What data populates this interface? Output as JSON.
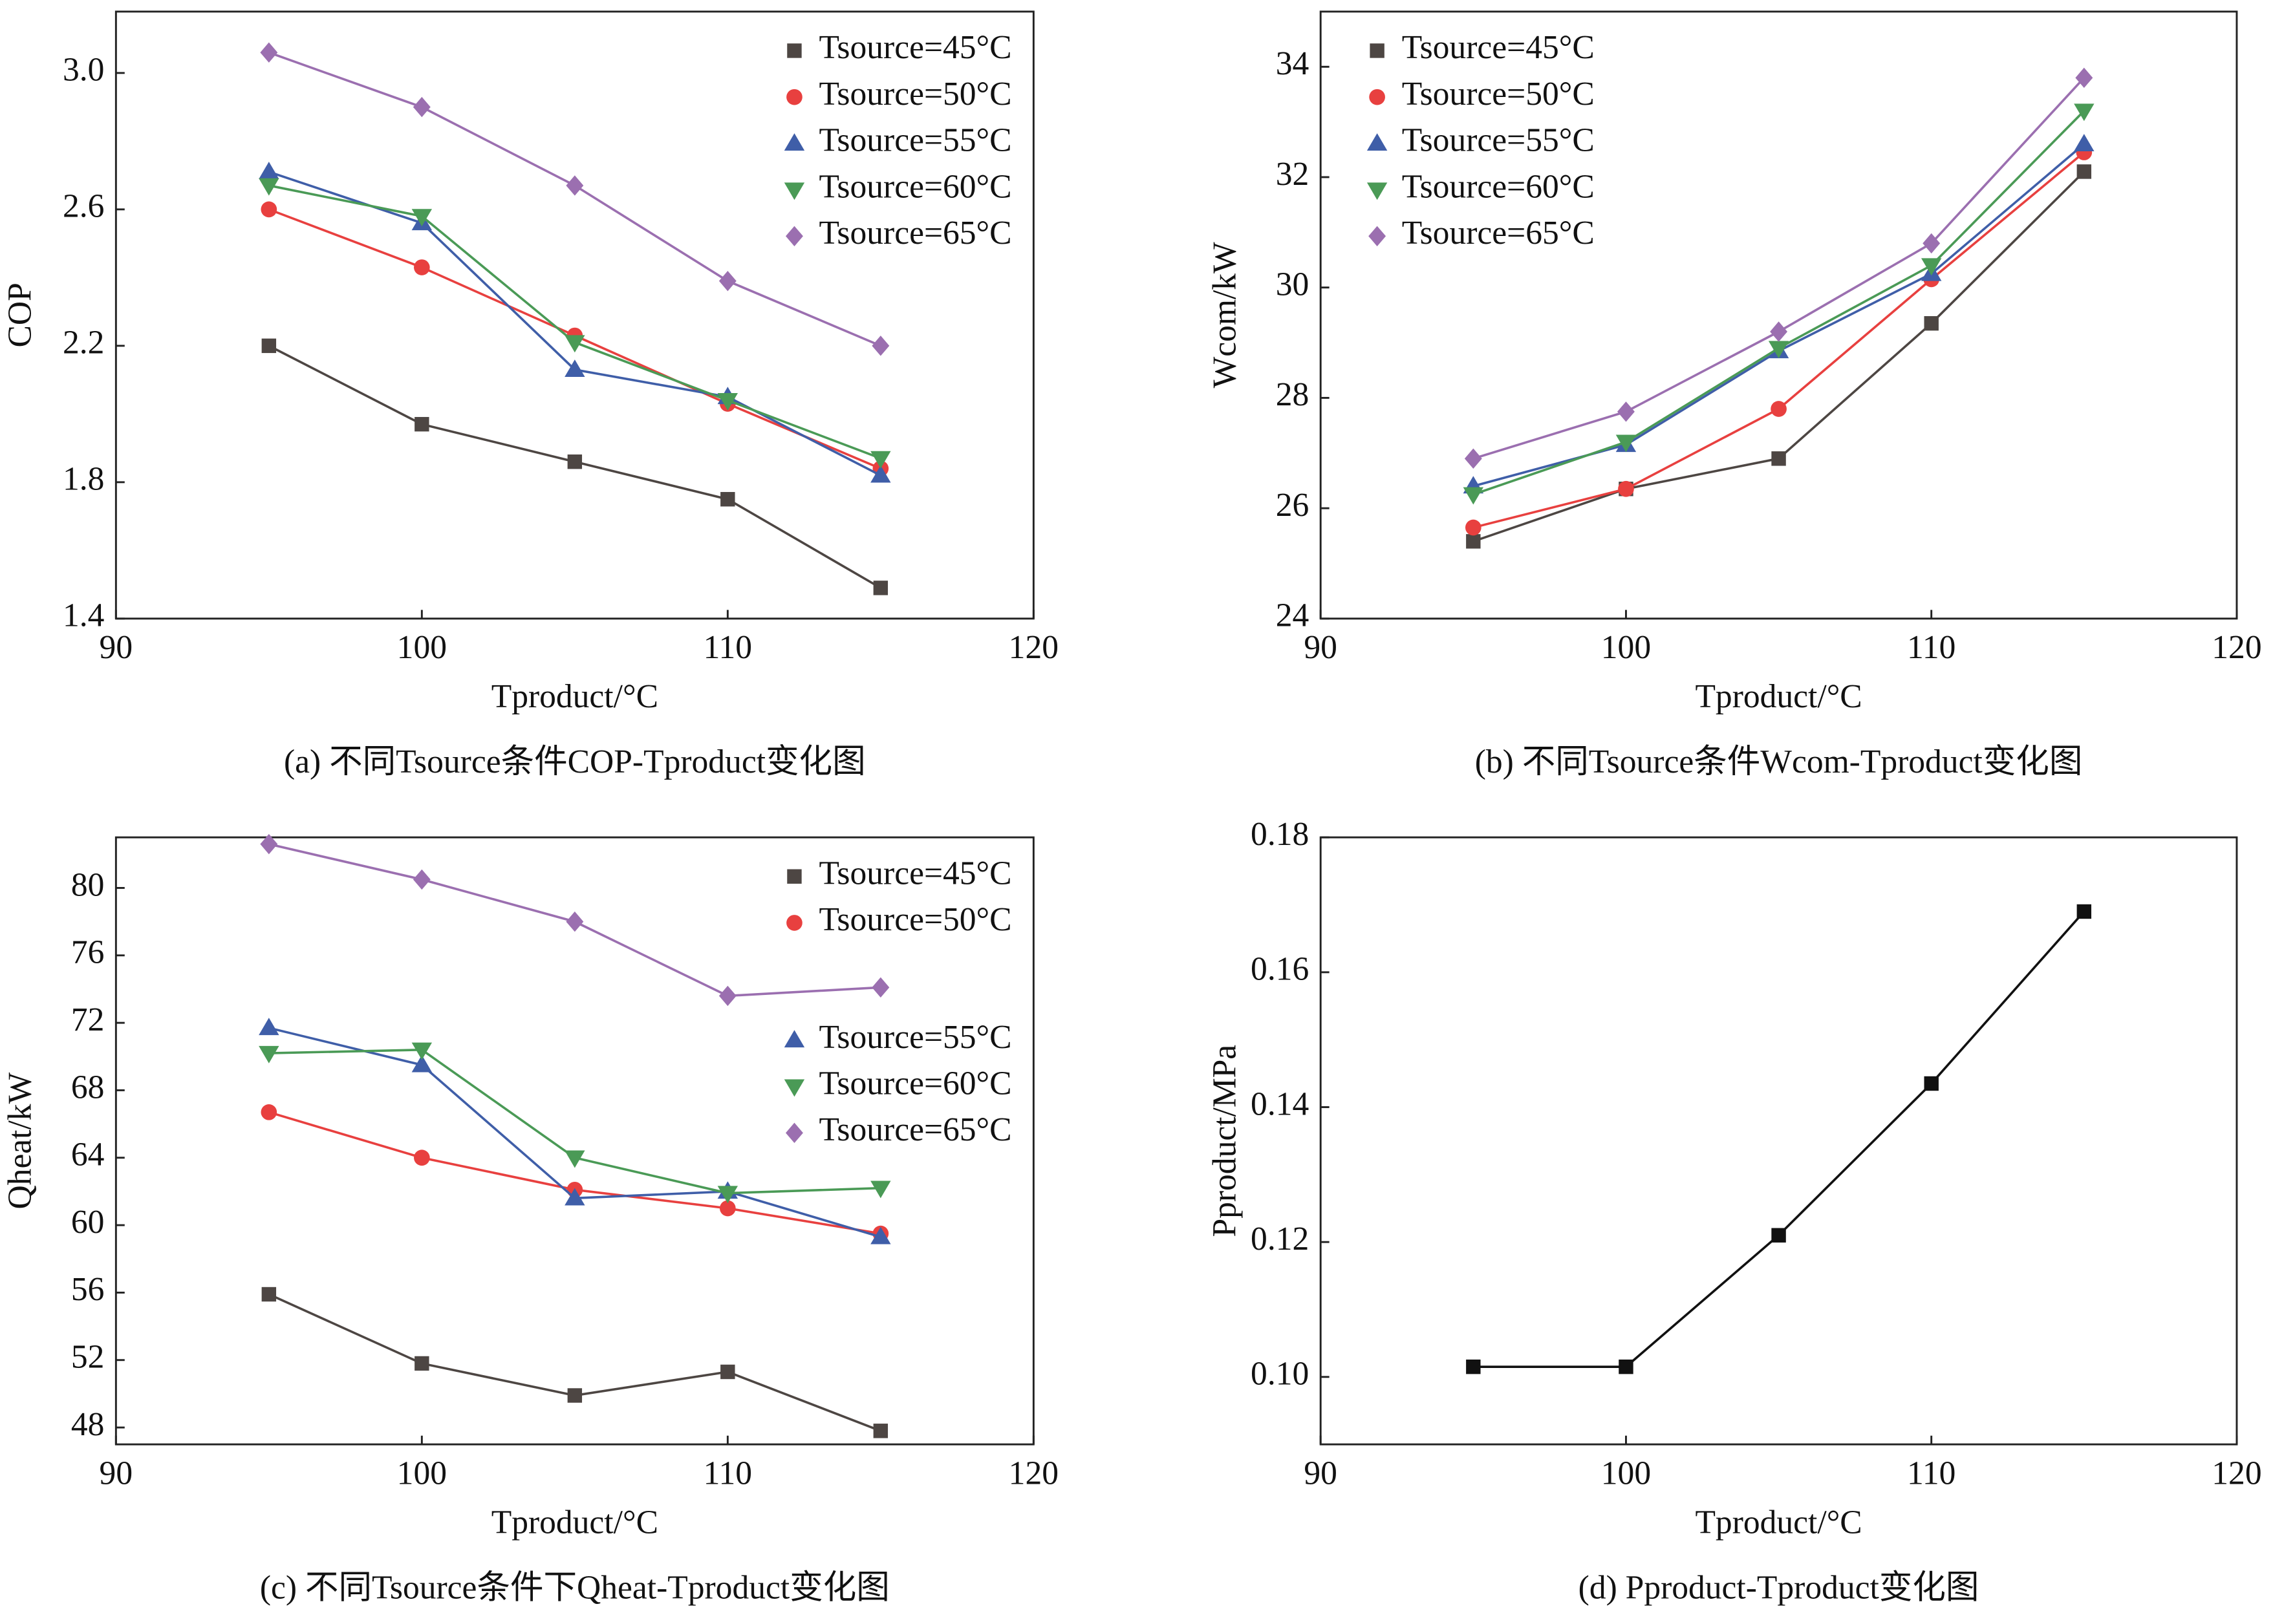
{
  "chart_data": [
    {
      "type": "line",
      "caption": "(a) 不同Tsource条件COP-Tproduct变化图",
      "xlabel": "Tproduct/°C",
      "ylabel": "COP",
      "x": [
        95,
        100,
        105,
        110,
        115
      ],
      "xlim": [
        90,
        120
      ],
      "xticks": [
        90,
        100,
        110,
        120
      ],
      "ylim": [
        1.4,
        3.18
      ],
      "yticks": [
        1.4,
        1.8,
        2.2,
        2.6,
        {
          "value": 3,
          "label": "3.0"
        }
      ],
      "series": [
        {
          "name": "Tsource=45°C",
          "color": "#4d4643",
          "marker": "square",
          "values": [
            2.2,
            1.97,
            1.86,
            1.75,
            1.49
          ]
        },
        {
          "name": "Tsource=50°C",
          "color": "#e8403f",
          "marker": "circle",
          "values": [
            2.6,
            2.43,
            2.23,
            2.03,
            1.84
          ]
        },
        {
          "name": "Tsource=55°C",
          "color": "#3f5ea8",
          "marker": "triangle-up",
          "values": [
            2.71,
            2.56,
            2.13,
            2.05,
            1.82
          ]
        },
        {
          "name": "Tsource=60°C",
          "color": "#4a9a56",
          "marker": "triangle-down",
          "values": [
            2.67,
            2.58,
            2.21,
            2.04,
            1.87
          ]
        },
        {
          "name": "Tsource=65°C",
          "color": "#9b6fb0",
          "marker": "diamond",
          "values": [
            3.06,
            2.9,
            2.67,
            2.39,
            2.2
          ]
        }
      ]
    },
    {
      "type": "line",
      "caption": "(b) 不同Tsource条件Wcom-Tproduct变化图",
      "xlabel": "Tproduct/°C",
      "ylabel": "Wcom/kW",
      "x": [
        95,
        100,
        105,
        110,
        115
      ],
      "xlim": [
        90,
        120
      ],
      "xticks": [
        90,
        100,
        110,
        120
      ],
      "ylim": [
        24,
        35
      ],
      "yticks": [
        24,
        26,
        28,
        30,
        32,
        34
      ],
      "series": [
        {
          "name": "Tsource=45°C",
          "color": "#4d4643",
          "marker": "square",
          "values": [
            25.4,
            26.35,
            26.9,
            29.35,
            32.1
          ]
        },
        {
          "name": "Tsource=50°C",
          "color": "#e8403f",
          "marker": "circle",
          "values": [
            25.65,
            26.35,
            27.8,
            30.15,
            32.45
          ]
        },
        {
          "name": "Tsource=55°C",
          "color": "#3f5ea8",
          "marker": "triangle-up",
          "values": [
            26.4,
            27.15,
            28.85,
            30.25,
            32.6
          ]
        },
        {
          "name": "Tsource=60°C",
          "color": "#4a9a56",
          "marker": "triangle-down",
          "values": [
            26.25,
            27.2,
            28.9,
            30.4,
            33.2
          ]
        },
        {
          "name": "Tsource=65°C",
          "color": "#9b6fb0",
          "marker": "diamond",
          "values": [
            26.9,
            27.75,
            29.2,
            30.8,
            33.8
          ]
        }
      ]
    },
    {
      "type": "line",
      "caption": "(c) 不同Tsource条件下Qheat-Tproduct变化图",
      "xlabel": "Tproduct/°C",
      "ylabel": "Qheat/kW",
      "x": [
        95,
        100,
        105,
        110,
        115
      ],
      "xlim": [
        90,
        120
      ],
      "xticks": [
        90,
        100,
        110,
        120
      ],
      "ylim": [
        47,
        83
      ],
      "yticks": [
        48,
        52,
        56,
        60,
        64,
        68,
        72,
        76,
        80
      ],
      "series": [
        {
          "name": "Tsource=45°C",
          "color": "#4d4643",
          "marker": "square",
          "values": [
            55.9,
            51.8,
            49.9,
            51.3,
            47.8
          ]
        },
        {
          "name": "Tsource=50°C",
          "color": "#e8403f",
          "marker": "circle",
          "values": [
            66.7,
            64.0,
            62.1,
            61.0,
            59.5
          ]
        },
        {
          "name": "Tsource=55°C",
          "color": "#3f5ea8",
          "marker": "triangle-up",
          "values": [
            71.7,
            69.5,
            61.6,
            62.0,
            59.3
          ]
        },
        {
          "name": "Tsource=60°C",
          "color": "#4a9a56",
          "marker": "triangle-down",
          "values": [
            70.2,
            70.4,
            64.0,
            61.9,
            62.2
          ]
        },
        {
          "name": "Tsource=65°C",
          "color": "#9b6fb0",
          "marker": "diamond",
          "values": [
            82.6,
            80.5,
            78.0,
            73.6,
            74.1
          ]
        }
      ]
    },
    {
      "type": "line",
      "caption": "(d) Pproduct-Tproduct变化图",
      "xlabel": "Tproduct/°C",
      "ylabel": "Pproduct/MPa",
      "x": [
        95,
        100,
        105,
        110,
        115
      ],
      "xlim": [
        90,
        120
      ],
      "xticks": [
        90,
        100,
        110,
        120
      ],
      "ylim": [
        0.09,
        0.18
      ],
      "yticks": [
        {
          "value": 0.1,
          "label": "0.10"
        },
        0.12,
        0.14,
        0.16,
        0.18
      ],
      "series": [
        {
          "color": "#111111",
          "marker": "square",
          "values": [
            0.1015,
            0.1015,
            0.121,
            0.1435,
            0.169
          ]
        }
      ]
    }
  ]
}
